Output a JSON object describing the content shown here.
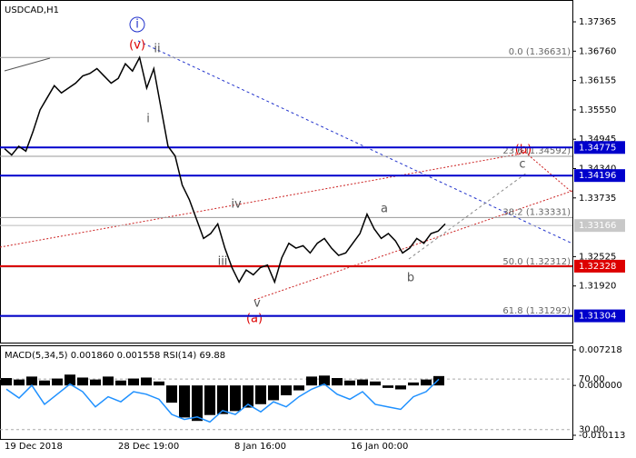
{
  "chart_data": {
    "type": "line",
    "title": "USDCAD,H1",
    "series": [
      {
        "name": "USDCAD",
        "color": "#000000",
        "values": [
          1.3475,
          1.3462,
          1.348,
          1.347,
          1.351,
          1.3555,
          1.358,
          1.3605,
          1.359,
          1.36,
          1.361,
          1.3625,
          1.363,
          1.364,
          1.3625,
          1.361,
          1.362,
          1.365,
          1.3635,
          1.3663,
          1.36,
          1.364,
          1.356,
          1.348,
          1.346,
          1.34,
          1.337,
          1.333,
          1.329,
          1.33,
          1.332,
          1.327,
          1.323,
          1.32,
          1.3225,
          1.3215,
          1.323,
          1.3235,
          1.32,
          1.325,
          1.328,
          1.327,
          1.3275,
          1.326,
          1.328,
          1.329,
          1.327,
          1.3255,
          1.326,
          1.328,
          1.33,
          1.334,
          1.331,
          1.329,
          1.33,
          1.3285,
          1.326,
          1.327,
          1.329,
          1.328,
          1.33,
          1.3305,
          1.332
        ]
      }
    ],
    "ylim": [
      1.30734,
      1.37815
    ],
    "yticks": [
      {
        "value": 1.37365,
        "label": "1.37365"
      },
      {
        "value": 1.3676,
        "label": "1.36760"
      },
      {
        "value": 1.36155,
        "label": "1.36155"
      },
      {
        "value": 1.3555,
        "label": "1.35550"
      },
      {
        "value": 1.34945,
        "label": "1.34945"
      },
      {
        "value": 1.3434,
        "label": "1.34340"
      },
      {
        "value": 1.33735,
        "label": "1.33735"
      },
      {
        "value": 1.32525,
        "label": "1.32525"
      },
      {
        "value": 1.3192,
        "label": "1.31920"
      }
    ],
    "levels": [
      {
        "value": 1.34775,
        "label": "1.34775",
        "color": "#0000cc"
      },
      {
        "value": 1.34196,
        "label": "1.34196",
        "color": "#0000cc"
      },
      {
        "value": 1.32328,
        "label": "1.32328",
        "color": "#dd0000"
      },
      {
        "value": 1.31304,
        "label": "1.31304",
        "color": "#0000cc"
      }
    ],
    "current_price": {
      "value": 1.33166,
      "label": "1.33166"
    },
    "fib_levels": [
      {
        "value": 1.36631,
        "label": "0.0 (1.36631)"
      },
      {
        "value": 1.34592,
        "label": "23.6 (1.34592)"
      },
      {
        "value": 1.33331,
        "label": "38.2 (1.33331)"
      },
      {
        "value": 1.32312,
        "label": "50.0 (1.32312)"
      },
      {
        "value": 1.31292,
        "label": "61.8 (1.31292)"
      }
    ],
    "annotations": [
      "i",
      "(v)",
      "ii",
      "i",
      "iv",
      "iii",
      "v",
      "(a)",
      "a",
      "b",
      "c",
      "(b)"
    ],
    "x_labels": [
      "19 Dec 2018",
      "28 Dec 19:00",
      "8 Jan 16:00",
      "16 Jan 00:00"
    ],
    "indicator": {
      "title": "MACD(5,34,5) 0.001860 0.001558 RSI(14) 69.88",
      "ylim": [
        -0.010113,
        0.007218
      ],
      "yticks": [
        {
          "value": 0.007218,
          "label": "0.007218"
        },
        {
          "value": 0,
          "label": "0.000000"
        },
        {
          "value": -0.010113,
          "label": "-0.010113"
        }
      ],
      "y2lim": [
        22.6,
        96
      ],
      "y2ticks": [
        {
          "value": 70,
          "label": "70.00"
        },
        {
          "value": 30,
          "label": "30.00"
        }
      ],
      "series": [
        {
          "name": "MACD",
          "color": "#000000",
          "values": [
            0.0015,
            0.0012,
            0.0018,
            0.001,
            0.0014,
            0.0022,
            0.0016,
            0.0012,
            0.0018,
            0.001,
            0.0014,
            0.0016,
            0.0008,
            -0.0035,
            -0.0065,
            -0.0072,
            -0.006,
            -0.0058,
            -0.0052,
            -0.0045,
            -0.0038,
            -0.003,
            -0.002,
            -0.001,
            0.0018,
            0.002,
            0.0015,
            0.001,
            0.0012,
            0.0008,
            -0.0005,
            -0.0008,
            0.0006,
            0.0012,
            0.0019
          ]
        },
        {
          "name": "RSI(14)",
          "color": "#1e90ff",
          "axis": "y2",
          "values": [
            62,
            55,
            65,
            50,
            58,
            66,
            60,
            48,
            56,
            52,
            60,
            58,
            54,
            42,
            38,
            40,
            36,
            45,
            42,
            50,
            44,
            52,
            48,
            56,
            62,
            66,
            58,
            54,
            60,
            50,
            48,
            46,
            56,
            60,
            69.88
          ]
        }
      ]
    }
  }
}
